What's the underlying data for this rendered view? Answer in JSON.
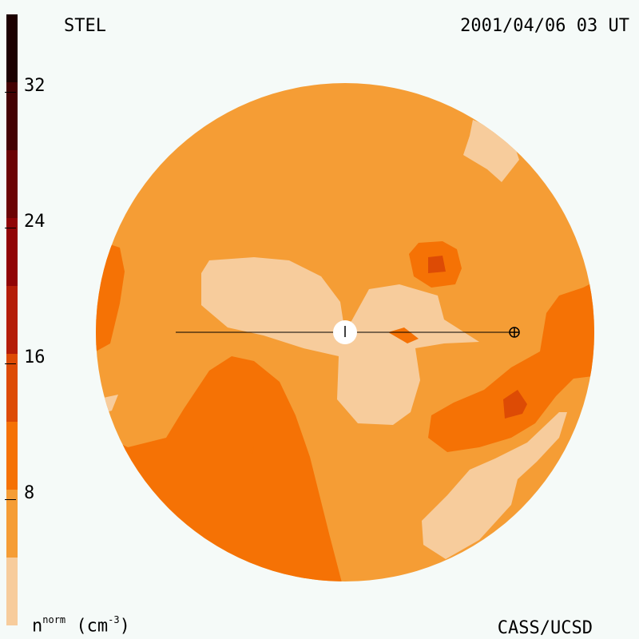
{
  "header": {
    "source": "STEL",
    "datetime": "2001/04/06 03 UT"
  },
  "footer": {
    "credit": "CASS/UCSD",
    "units_base": "n",
    "units_sup": "norm",
    "units_rest": " (cm",
    "units_exp": "-3",
    "units_close": ")"
  },
  "colorbar": {
    "ticks": [
      {
        "value": 32,
        "label": "32"
      },
      {
        "value": 24,
        "label": "24"
      },
      {
        "value": 16,
        "label": "16"
      },
      {
        "value": 8,
        "label": "8"
      }
    ],
    "levels": [
      {
        "min": 0,
        "max": 4,
        "color": "#f7cc9c"
      },
      {
        "min": 4,
        "max": 8,
        "color": "#f59d35"
      },
      {
        "min": 8,
        "max": 12,
        "color": "#f57205"
      },
      {
        "min": 12,
        "max": 16,
        "color": "#dd4b05"
      },
      {
        "min": 16,
        "max": 20,
        "color": "#b41d08"
      },
      {
        "min": 20,
        "max": 24,
        "color": "#900406"
      },
      {
        "min": 24,
        "max": 28,
        "color": "#6b0304"
      },
      {
        "min": 28,
        "max": 32,
        "color": "#440103"
      },
      {
        "min": 32,
        "max": 36,
        "color": "#1c0001"
      }
    ]
  },
  "map": {
    "background_color": "#f59d35",
    "sun_color": "#ffffff",
    "earth_symbol": "⊕"
  }
}
